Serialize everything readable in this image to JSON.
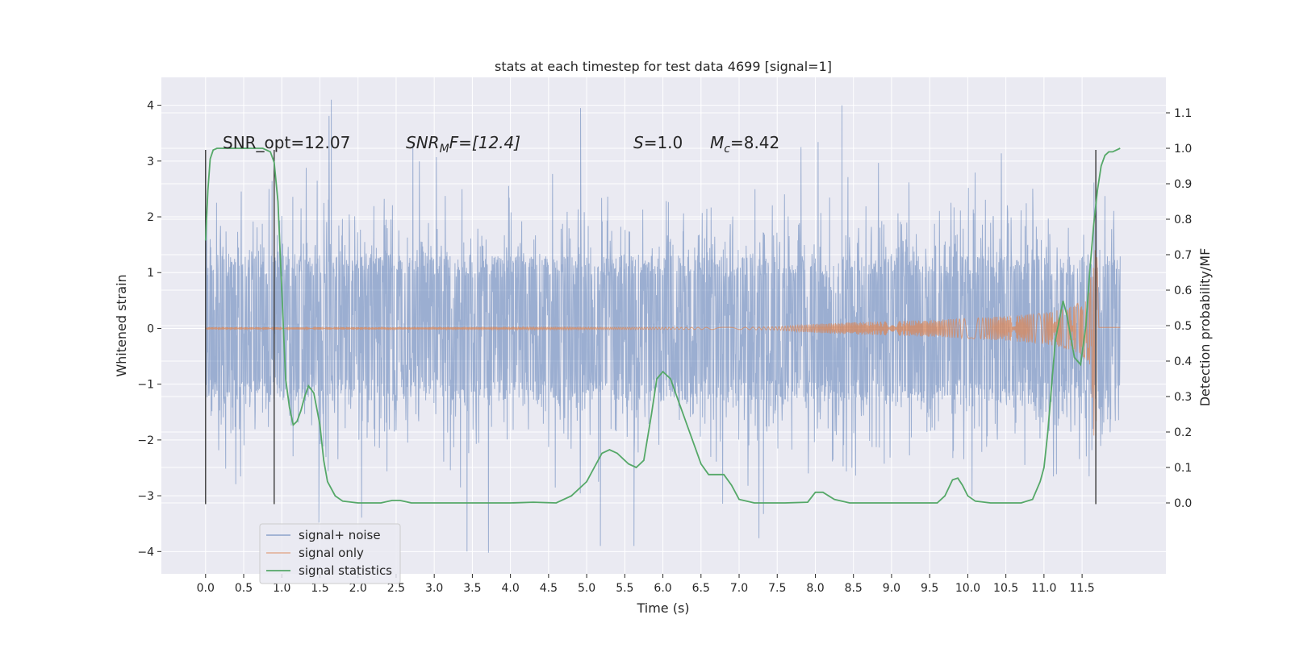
{
  "chart_data": {
    "type": "line",
    "title": "stats at each timestep for test data 4699 [signal=1]",
    "xlabel": "Time (s)",
    "ylabel_left": "Whitened strain",
    "ylabel_right": "Detection probability/MF",
    "xlim": [
      -0.58,
      12.6
    ],
    "ylim_left": [
      -4.4,
      4.5
    ],
    "ylim_right": [
      -0.2,
      1.2
    ],
    "x_ticks": [
      0.0,
      0.5,
      1.0,
      1.5,
      2.0,
      2.5,
      3.0,
      3.5,
      4.0,
      4.5,
      5.0,
      5.5,
      6.0,
      6.5,
      7.0,
      7.5,
      8.0,
      8.5,
      9.0,
      9.5,
      10.0,
      10.5,
      11.0,
      11.5
    ],
    "x_tick_labels": [
      "0.0",
      "0.5",
      "1.0",
      "1.5",
      "2.0",
      "2.5",
      "3.0",
      "3.5",
      "4.0",
      "4.5",
      "5.0",
      "5.5",
      "6.0",
      "6.5",
      "7.0",
      "7.5",
      "8.0",
      "8.5",
      "9.0",
      "9.5",
      "10.0",
      "10.5",
      "11.0",
      "11.5"
    ],
    "y_ticks_left": [
      -4,
      -3,
      -2,
      -1,
      0,
      1,
      2,
      3,
      4
    ],
    "y_tick_labels_left": [
      "−4",
      "−3",
      "−2",
      "−1",
      "0",
      "1",
      "2",
      "3",
      "4"
    ],
    "y_ticks_right": [
      0.0,
      0.1,
      0.2,
      0.3,
      0.4,
      0.5,
      0.6,
      0.7,
      0.8,
      0.9,
      1.0,
      1.1
    ],
    "y_tick_labels_right": [
      "0.0",
      "0.1",
      "0.2",
      "0.3",
      "0.4",
      "0.5",
      "0.6",
      "0.7",
      "0.8",
      "0.9",
      "1.0",
      "1.1"
    ],
    "grid": true,
    "legend_position": "lower-left",
    "annotations": {
      "snr_opt": "SNR_opt=12.07",
      "snr_mf_sym": "SNR",
      "snr_mf_sub": "M",
      "snr_mf_rest": "F=[12.4]",
      "s_sym": "S",
      "s_rest": "=1.0",
      "mc_sym": "M",
      "mc_sub": "c",
      "mc_rest": "=8.42"
    },
    "vertical_markers": [
      {
        "x": 0.0,
        "y_range": [
          -3.15,
          3.2
        ]
      },
      {
        "x": 0.9,
        "y_range": [
          -3.15,
          3.2
        ]
      },
      {
        "x": 11.68,
        "y_range": [
          -3.15,
          3.2
        ]
      }
    ],
    "series": [
      {
        "name": "signal+ noise",
        "axis": "left",
        "color": "#4c72b0",
        "opacity": 0.5,
        "x_range": [
          0.0,
          12.0
        ],
        "band_typical": [
          -2.0,
          2.0
        ],
        "band_core": [
          -1.3,
          1.3
        ],
        "max_spikes_x": [
          1.65,
          4.92,
          8.35
        ],
        "max_spikes_y": [
          4.1,
          3.95,
          4.0
        ],
        "min_spikes_x": [
          3.43,
          5.18,
          5.62
        ],
        "min_spikes_y": [
          -4.0,
          -3.9,
          -3.9
        ]
      },
      {
        "name": "signal only",
        "axis": "left",
        "color": "#dd8452",
        "x": [
          0.0,
          7.0,
          7.5,
          8.0,
          8.5,
          9.0,
          9.5,
          10.0,
          10.5,
          11.0,
          11.3,
          11.5,
          11.6,
          11.68,
          11.72,
          12.0
        ],
        "envelope": [
          0.02,
          0.02,
          0.03,
          0.08,
          0.11,
          0.13,
          0.15,
          0.18,
          0.22,
          0.28,
          0.36,
          0.48,
          0.65,
          2.5,
          0.02,
          0.02
        ]
      },
      {
        "name": "signal statistics",
        "axis": "right",
        "color": "#55a868",
        "x": [
          0.0,
          0.03,
          0.06,
          0.1,
          0.15,
          0.25,
          0.4,
          0.6,
          0.75,
          0.85,
          0.9,
          0.95,
          1.0,
          1.05,
          1.1,
          1.15,
          1.2,
          1.25,
          1.3,
          1.35,
          1.42,
          1.5,
          1.55,
          1.6,
          1.7,
          1.8,
          2.0,
          2.3,
          2.45,
          2.55,
          2.7,
          3.0,
          3.5,
          4.0,
          4.3,
          4.6,
          4.8,
          5.0,
          5.1,
          5.2,
          5.3,
          5.4,
          5.55,
          5.65,
          5.75,
          5.85,
          5.92,
          6.0,
          6.1,
          6.2,
          6.35,
          6.5,
          6.6,
          6.7,
          6.8,
          6.9,
          7.0,
          7.2,
          7.6,
          7.9,
          8.0,
          8.1,
          8.25,
          8.45,
          9.0,
          9.6,
          9.7,
          9.8,
          9.87,
          9.93,
          10.0,
          10.1,
          10.3,
          10.5,
          10.7,
          10.85,
          10.95,
          11.0,
          11.05,
          11.1,
          11.15,
          11.25,
          11.3,
          11.35,
          11.4,
          11.48,
          11.55,
          11.6,
          11.65,
          11.7,
          11.75,
          11.8,
          11.85,
          11.9,
          12.0
        ],
        "values": [
          0.74,
          0.88,
          0.97,
          0.995,
          1.0,
          1.0,
          1.0,
          1.0,
          1.0,
          0.99,
          0.96,
          0.85,
          0.6,
          0.35,
          0.27,
          0.22,
          0.23,
          0.26,
          0.3,
          0.33,
          0.31,
          0.22,
          0.12,
          0.06,
          0.02,
          0.005,
          0.0,
          0.0,
          0.007,
          0.007,
          0.0,
          0.0,
          0.0,
          0.0,
          0.002,
          0.0,
          0.02,
          0.06,
          0.1,
          0.14,
          0.15,
          0.14,
          0.11,
          0.1,
          0.12,
          0.25,
          0.35,
          0.37,
          0.35,
          0.29,
          0.2,
          0.11,
          0.08,
          0.08,
          0.08,
          0.05,
          0.01,
          0.0,
          0.0,
          0.002,
          0.03,
          0.03,
          0.01,
          0.0,
          0.0,
          0.0,
          0.02,
          0.065,
          0.07,
          0.05,
          0.02,
          0.005,
          0.0,
          0.0,
          0.0,
          0.01,
          0.06,
          0.1,
          0.2,
          0.33,
          0.46,
          0.57,
          0.53,
          0.47,
          0.41,
          0.39,
          0.5,
          0.65,
          0.78,
          0.88,
          0.95,
          0.98,
          0.99,
          0.99,
          1.0
        ]
      }
    ]
  }
}
